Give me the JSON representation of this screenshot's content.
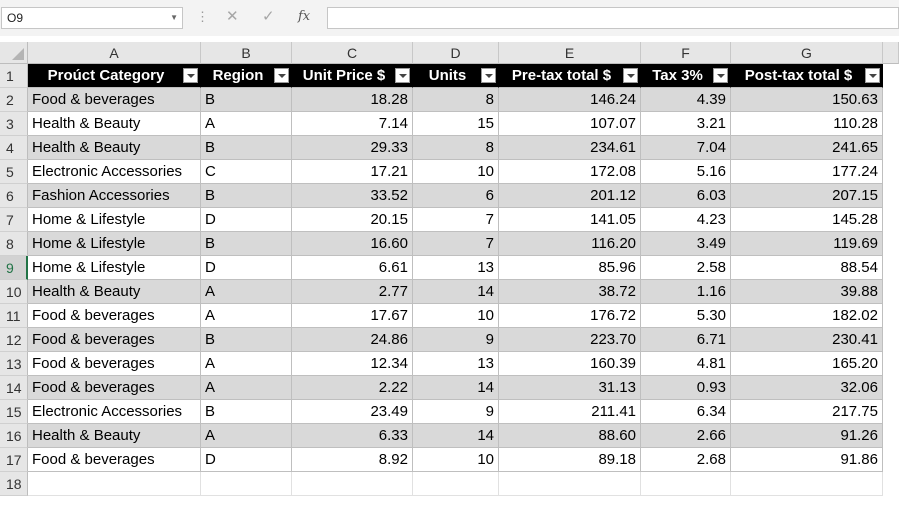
{
  "name_box": "O9",
  "formula_bar": {
    "value": "",
    "cancel_glyph": "✕",
    "enter_glyph": "✓",
    "fx_glyph": "fx"
  },
  "columns": [
    "A",
    "B",
    "C",
    "D",
    "E",
    "F",
    "G"
  ],
  "rows": [
    "1",
    "2",
    "3",
    "4",
    "5",
    "6",
    "7",
    "8",
    "9",
    "10",
    "11",
    "12",
    "13",
    "14",
    "15",
    "16",
    "17",
    "18"
  ],
  "selected_row": "9",
  "table": {
    "headers": [
      "Proúct Category",
      "Region",
      "Unit Price $",
      "Units",
      "Pre-tax total $",
      "Tax 3%",
      "Post-tax total $"
    ],
    "data": [
      [
        "Food & beverages",
        "B",
        "18.28",
        "8",
        "146.24",
        "4.39",
        "150.63"
      ],
      [
        "Health & Beauty",
        "A",
        "7.14",
        "15",
        "107.07",
        "3.21",
        "110.28"
      ],
      [
        "Health & Beauty",
        "B",
        "29.33",
        "8",
        "234.61",
        "7.04",
        "241.65"
      ],
      [
        "Electronic Accessories",
        "C",
        "17.21",
        "10",
        "172.08",
        "5.16",
        "177.24"
      ],
      [
        "Fashion Accessories",
        "B",
        "33.52",
        "6",
        "201.12",
        "6.03",
        "207.15"
      ],
      [
        "Home & Lifestyle",
        "D",
        "20.15",
        "7",
        "141.05",
        "4.23",
        "145.28"
      ],
      [
        "Home & Lifestyle",
        "B",
        "16.60",
        "7",
        "116.20",
        "3.49",
        "119.69"
      ],
      [
        "Home & Lifestyle",
        "D",
        "6.61",
        "13",
        "85.96",
        "2.58",
        "88.54"
      ],
      [
        "Health & Beauty",
        "A",
        "2.77",
        "14",
        "38.72",
        "1.16",
        "39.88"
      ],
      [
        "Food & beverages",
        "A",
        "17.67",
        "10",
        "176.72",
        "5.30",
        "182.02"
      ],
      [
        "Food & beverages",
        "B",
        "24.86",
        "9",
        "223.70",
        "6.71",
        "230.41"
      ],
      [
        "Food & beverages",
        "A",
        "12.34",
        "13",
        "160.39",
        "4.81",
        "165.20"
      ],
      [
        "Food & beverages",
        "A",
        "2.22",
        "14",
        "31.13",
        "0.93",
        "32.06"
      ],
      [
        "Electronic Accessories",
        "B",
        "23.49",
        "9",
        "211.41",
        "6.34",
        "217.75"
      ],
      [
        "Health & Beauty",
        "A",
        "6.33",
        "14",
        "88.60",
        "2.66",
        "91.26"
      ],
      [
        "Food & beverages",
        "D",
        "8.92",
        "10",
        "89.18",
        "2.68",
        "91.86"
      ]
    ]
  },
  "colors": {
    "header_bg": "#000000",
    "header_text": "#ffffff",
    "band": "#d9d9d9",
    "accent": "#217346"
  }
}
